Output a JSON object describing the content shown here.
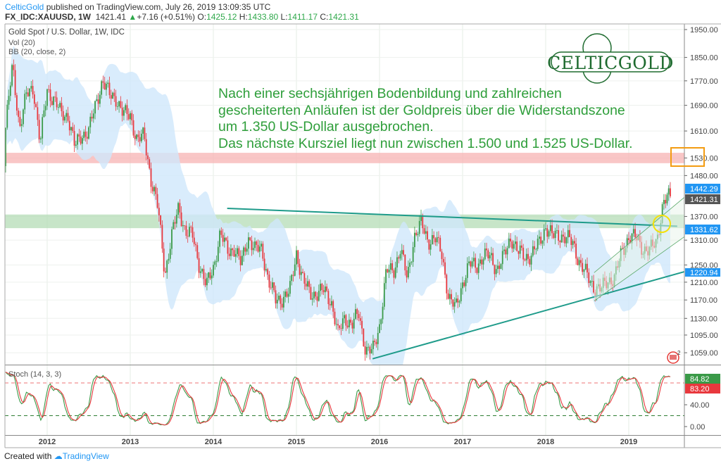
{
  "header": {
    "author": "CelticGold",
    "published": "published on TradingView.com, July 26, 2019 13:09:35 UTC",
    "symbol": "FX_IDC:XAUUSD, 1W",
    "last": "1421.41",
    "change": "+7.16 (+0.51%)",
    "o_label": "O:",
    "o": "1425.12",
    "h_label": "H:",
    "h": "1433.80",
    "l_label": "L:",
    "l": "1411.17",
    "c_label": "C:",
    "c": "1421.31"
  },
  "legend": {
    "title": "Gold Spot / U.S. Dollar, 1W, IDC",
    "vol": "Vol (20)",
    "bb": "BB (20, close, 2)",
    "stoch": "Stoch (14, 3, 3)"
  },
  "logo": "CELTICGOLD",
  "annotation": [
    "Nach einer sechsjährigen Bodenbildung und zahlreichen",
    "gescheiterten Anläufen ist der Goldpreis über die Widerstandszone",
    "um 1.350 US-Dollar ausgebrochen.",
    "Das nächste Kursziel liegt nun zwischen 1.500 und 1.525 US-Dollar."
  ],
  "footer": {
    "created_with": "Created with",
    "brand": "TradingView"
  },
  "colors": {
    "up": "#3a9a48",
    "down": "#e8383d",
    "bb_fill": "#cfe7fb",
    "accent": "#2196f3",
    "annotation": "#2e9e3a",
    "target_box": "#f39c12",
    "highlight_circle": "#f5e10a"
  },
  "chart_data": {
    "type": "candlestick",
    "title": "Gold Spot / U.S. Dollar, 1W, IDC",
    "y_scale": "log",
    "ylim": [
      1040,
      1960
    ],
    "grid": true,
    "x_ticks": [
      "2012",
      "2013",
      "2014",
      "2015",
      "2016",
      "2017",
      "2018",
      "2019"
    ],
    "y_ticks": [
      1950,
      1850,
      1770,
      1690,
      1610,
      1530,
      1480,
      1370,
      1310,
      1250,
      1210,
      1170,
      1130,
      1095,
      1059
    ],
    "y_tick_labels": [
      "1950.00",
      "1850.00",
      "1770.00",
      "1690.00",
      "1610.00",
      "1530.00",
      "1480.00",
      "1370.00",
      "1310.00",
      "1250.00",
      "1210.00",
      "1170.00",
      "1130.00",
      "1095.00",
      "1059.00"
    ],
    "series": [
      {
        "name": "XAUUSD",
        "start": "2011-07",
        "monthly_close_approx": [
          1620,
          1820,
          1620,
          1720,
          1750,
          1570,
          1740,
          1710,
          1660,
          1660,
          1560,
          1600,
          1610,
          1690,
          1775,
          1720,
          1715,
          1660,
          1660,
          1580,
          1595,
          1470,
          1390,
          1230,
          1320,
          1395,
          1330,
          1320,
          1250,
          1200,
          1245,
          1325,
          1285,
          1290,
          1250,
          1320,
          1285,
          1290,
          1210,
          1170,
          1175,
          1185,
          1280,
          1210,
          1185,
          1185,
          1190,
          1170,
          1095,
          1135,
          1115,
          1140,
          1065,
          1060,
          1115,
          1235,
          1235,
          1290,
          1215,
          1320,
          1350,
          1310,
          1315,
          1275,
          1175,
          1150,
          1210,
          1250,
          1250,
          1270,
          1270,
          1240,
          1270,
          1320,
          1280,
          1270,
          1275,
          1300,
          1345,
          1318,
          1325,
          1315,
          1300,
          1252,
          1223,
          1200,
          1192,
          1215,
          1222,
          1280,
          1320,
          1315,
          1292,
          1283,
          1305,
          1410,
          1421
        ]
      }
    ],
    "zones": [
      {
        "name": "target-zone",
        "low": 1515,
        "high": 1545,
        "color": "#f7b3b3"
      },
      {
        "name": "resistance-zone",
        "low": 1340,
        "high": 1375,
        "color": "#b4dcb6"
      }
    ],
    "trendlines": [
      {
        "name": "descending-resistance",
        "from": [
          "2014-03",
          1391
        ],
        "to": [
          "2019-08",
          1345
        ],
        "color": "#1e9b8a"
      },
      {
        "name": "ascending-support",
        "from": [
          "2015-12",
          1047
        ],
        "to": [
          "2019-09",
          1234
        ],
        "color": "#1e9b8a"
      }
    ],
    "channel": [
      {
        "from": [
          "2018-08",
          1168
        ],
        "to": [
          "2019-09",
          1318
        ]
      },
      {
        "from": [
          "2018-08",
          1232
        ],
        "to": [
          "2019-09",
          1420
        ]
      }
    ],
    "price_labels": [
      {
        "value": "1442.29",
        "color": "#2196f3"
      },
      {
        "value": "1421.31",
        "color": "#555555"
      },
      {
        "value": "1331.62",
        "color": "#2196f3"
      },
      {
        "value": "1220.94",
        "color": "#2196f3"
      }
    ],
    "stoch": {
      "ylim": [
        0,
        100
      ],
      "ticks": [
        "40.00",
        "0.00"
      ],
      "upper": 80,
      "lower": 20,
      "k_last": "84.82",
      "d_last": "83.20",
      "k_color": "#3a9a48",
      "d_color": "#e8383d"
    }
  }
}
